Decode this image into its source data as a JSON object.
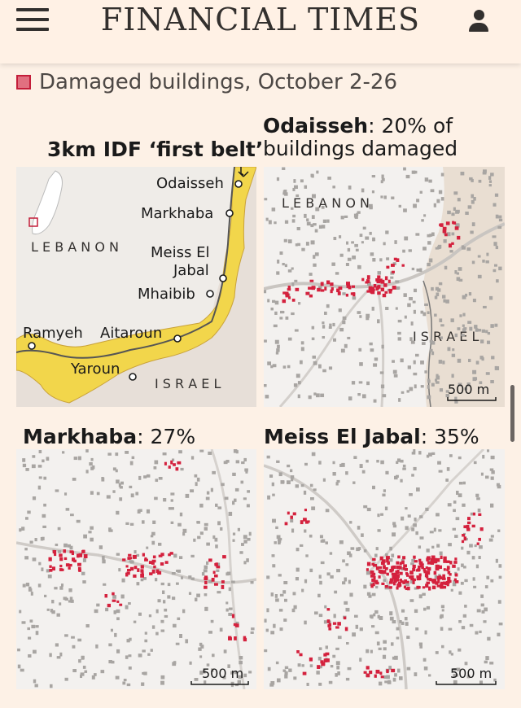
{
  "header": {
    "logo": "FINANCIAL TIMES"
  },
  "colors": {
    "damaged": "#d4213d",
    "intact": "#a8a5a2",
    "belt": "#f2d64b",
    "background": "#fdf1e6"
  },
  "legend": {
    "label": "Damaged buildings, October 2-26"
  },
  "overview": {
    "belt_label": "3km IDF ‘first belt’",
    "country_lebanon": "L E B A N O N",
    "country_israel": "I S R A E L",
    "villages": [
      "Odaisseh",
      "Markhaba",
      "Meiss El",
      "Jabal",
      "Mhaibib",
      "Ramyeh",
      "Aitaroun",
      "Yaroun"
    ]
  },
  "panels": {
    "odaisseh": {
      "name": "Odaisseh",
      "stat_line1": ": 20% of",
      "stat_line2": "buildings damaged",
      "lebanon": "L E B A N O N",
      "israel": "I S R A E L",
      "scale": "500 m"
    },
    "markhaba": {
      "name": "Markhaba",
      "stat": ": 27%",
      "scale": "500 m"
    },
    "meiss": {
      "name": "Meiss El Jabal",
      "stat": ": 35%",
      "scale": "500 m"
    }
  }
}
